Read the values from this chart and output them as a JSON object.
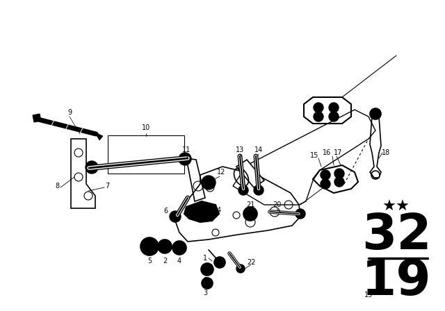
{
  "background_color": "#ffffff",
  "line_color": "#000000",
  "fig_width": 6.4,
  "fig_height": 4.48,
  "dpi": 100,
  "part_number_top": "32",
  "part_number_bottom": "19",
  "stars_text": "★★"
}
